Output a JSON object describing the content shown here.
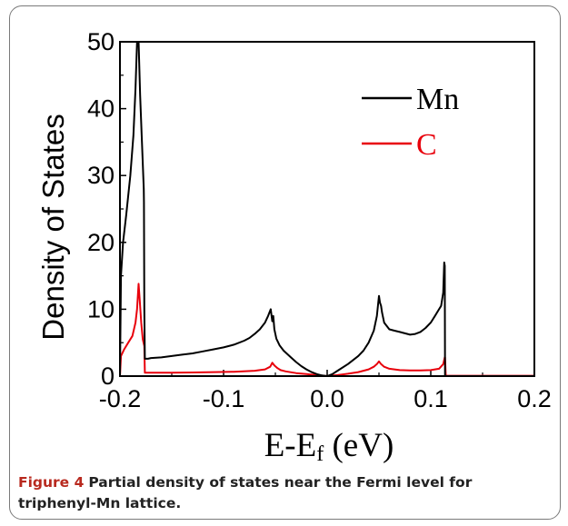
{
  "caption": {
    "label": "Figure 4",
    "text": "Partial density of states near the Fermi level for triphenyl-Mn lattice."
  },
  "chart_data": {
    "type": "line",
    "title": "",
    "xlabel_main": "E-E",
    "xlabel_sub": "f",
    "xlabel_unit": " (eV)",
    "ylabel": "Density of States",
    "xlim": [
      -0.2,
      0.2
    ],
    "ylim": [
      0,
      50
    ],
    "xticks": [
      -0.2,
      -0.1,
      0.0,
      0.1,
      0.2
    ],
    "xtick_labels": [
      "-0.2",
      "-0.1",
      "0.0",
      "0.1",
      "0.2"
    ],
    "yticks": [
      0,
      10,
      20,
      30,
      40,
      50
    ],
    "ytick_labels": [
      "0",
      "10",
      "20",
      "30",
      "40",
      "50"
    ],
    "legend_position": "top-right",
    "series": [
      {
        "name": "Mn",
        "color": "#000000",
        "x": [
          -0.2,
          -0.199,
          -0.197,
          -0.194,
          -0.19,
          -0.187,
          -0.185,
          -0.1835,
          -0.182,
          -0.1805,
          -0.179,
          -0.177,
          -0.1768,
          -0.1765,
          -0.176,
          -0.173,
          -0.17,
          -0.16,
          -0.15,
          -0.14,
          -0.13,
          -0.12,
          -0.11,
          -0.1,
          -0.09,
          -0.08,
          -0.075,
          -0.07,
          -0.065,
          -0.06,
          -0.057,
          -0.0545,
          -0.053,
          -0.052,
          -0.051,
          -0.049,
          -0.046,
          -0.042,
          -0.035,
          -0.03,
          -0.025,
          -0.02,
          -0.015,
          -0.01,
          -0.005,
          0.0,
          0.005,
          0.01,
          0.02,
          0.03,
          0.035,
          0.04,
          0.045,
          0.048,
          0.05,
          0.051,
          0.052,
          0.053,
          0.055,
          0.06,
          0.065,
          0.07,
          0.075,
          0.08,
          0.085,
          0.09,
          0.095,
          0.1,
          0.104,
          0.108,
          0.11,
          0.112,
          0.113,
          0.1135,
          0.1138,
          0.1145,
          0.116,
          0.13,
          0.15,
          0.17,
          0.2
        ],
        "y": [
          0,
          15,
          20,
          24,
          30,
          36,
          43,
          50,
          50,
          42,
          36,
          28,
          26,
          10,
          2.6,
          2.6,
          2.7,
          2.8,
          3.0,
          3.2,
          3.4,
          3.7,
          4.0,
          4.3,
          4.7,
          5.3,
          5.7,
          6.3,
          7.0,
          8.0,
          9.0,
          10.0,
          8.2,
          9.0,
          7.0,
          5.6,
          4.6,
          3.8,
          2.8,
          2.1,
          1.5,
          1.0,
          0.6,
          0.3,
          0.1,
          0.0,
          0.3,
          0.8,
          1.8,
          3.0,
          3.8,
          5.0,
          6.8,
          9.0,
          12.0,
          11.0,
          10.5,
          9.5,
          8.0,
          7.0,
          6.8,
          6.6,
          6.4,
          6.2,
          6.3,
          6.6,
          7.2,
          8.0,
          9.0,
          10.0,
          10.5,
          12.5,
          17.0,
          16.5,
          0.0,
          0.0,
          0.0,
          0.0,
          0.0,
          0.0,
          0.0
        ]
      },
      {
        "name": "C",
        "color": "#e8000b",
        "x": [
          -0.2,
          -0.199,
          -0.196,
          -0.192,
          -0.188,
          -0.185,
          -0.1835,
          -0.182,
          -0.181,
          -0.1795,
          -0.178,
          -0.1765,
          -0.176,
          -0.17,
          -0.15,
          -0.13,
          -0.11,
          -0.09,
          -0.07,
          -0.06,
          -0.055,
          -0.053,
          -0.051,
          -0.048,
          -0.045,
          -0.04,
          -0.03,
          -0.02,
          -0.01,
          0.0,
          0.01,
          0.02,
          0.03,
          0.04,
          0.045,
          0.048,
          0.05,
          0.052,
          0.055,
          0.06,
          0.07,
          0.08,
          0.09,
          0.1,
          0.108,
          0.112,
          0.1135,
          0.1138,
          0.1145,
          0.13,
          0.15,
          0.17,
          0.2
        ],
        "y": [
          0,
          3.0,
          4.0,
          5.0,
          6.0,
          8.0,
          10.0,
          13.8,
          11.5,
          8.0,
          5.5,
          4.5,
          0.5,
          0.5,
          0.5,
          0.55,
          0.6,
          0.65,
          0.8,
          1.0,
          1.4,
          2.0,
          1.6,
          1.2,
          0.9,
          0.7,
          0.45,
          0.3,
          0.15,
          0.0,
          0.15,
          0.35,
          0.6,
          1.0,
          1.4,
          1.8,
          2.2,
          1.8,
          1.4,
          1.1,
          0.9,
          0.85,
          0.85,
          0.9,
          1.1,
          1.8,
          2.8,
          2.8,
          0.05,
          0.05,
          0.05,
          0.05,
          0.05
        ]
      }
    ]
  }
}
